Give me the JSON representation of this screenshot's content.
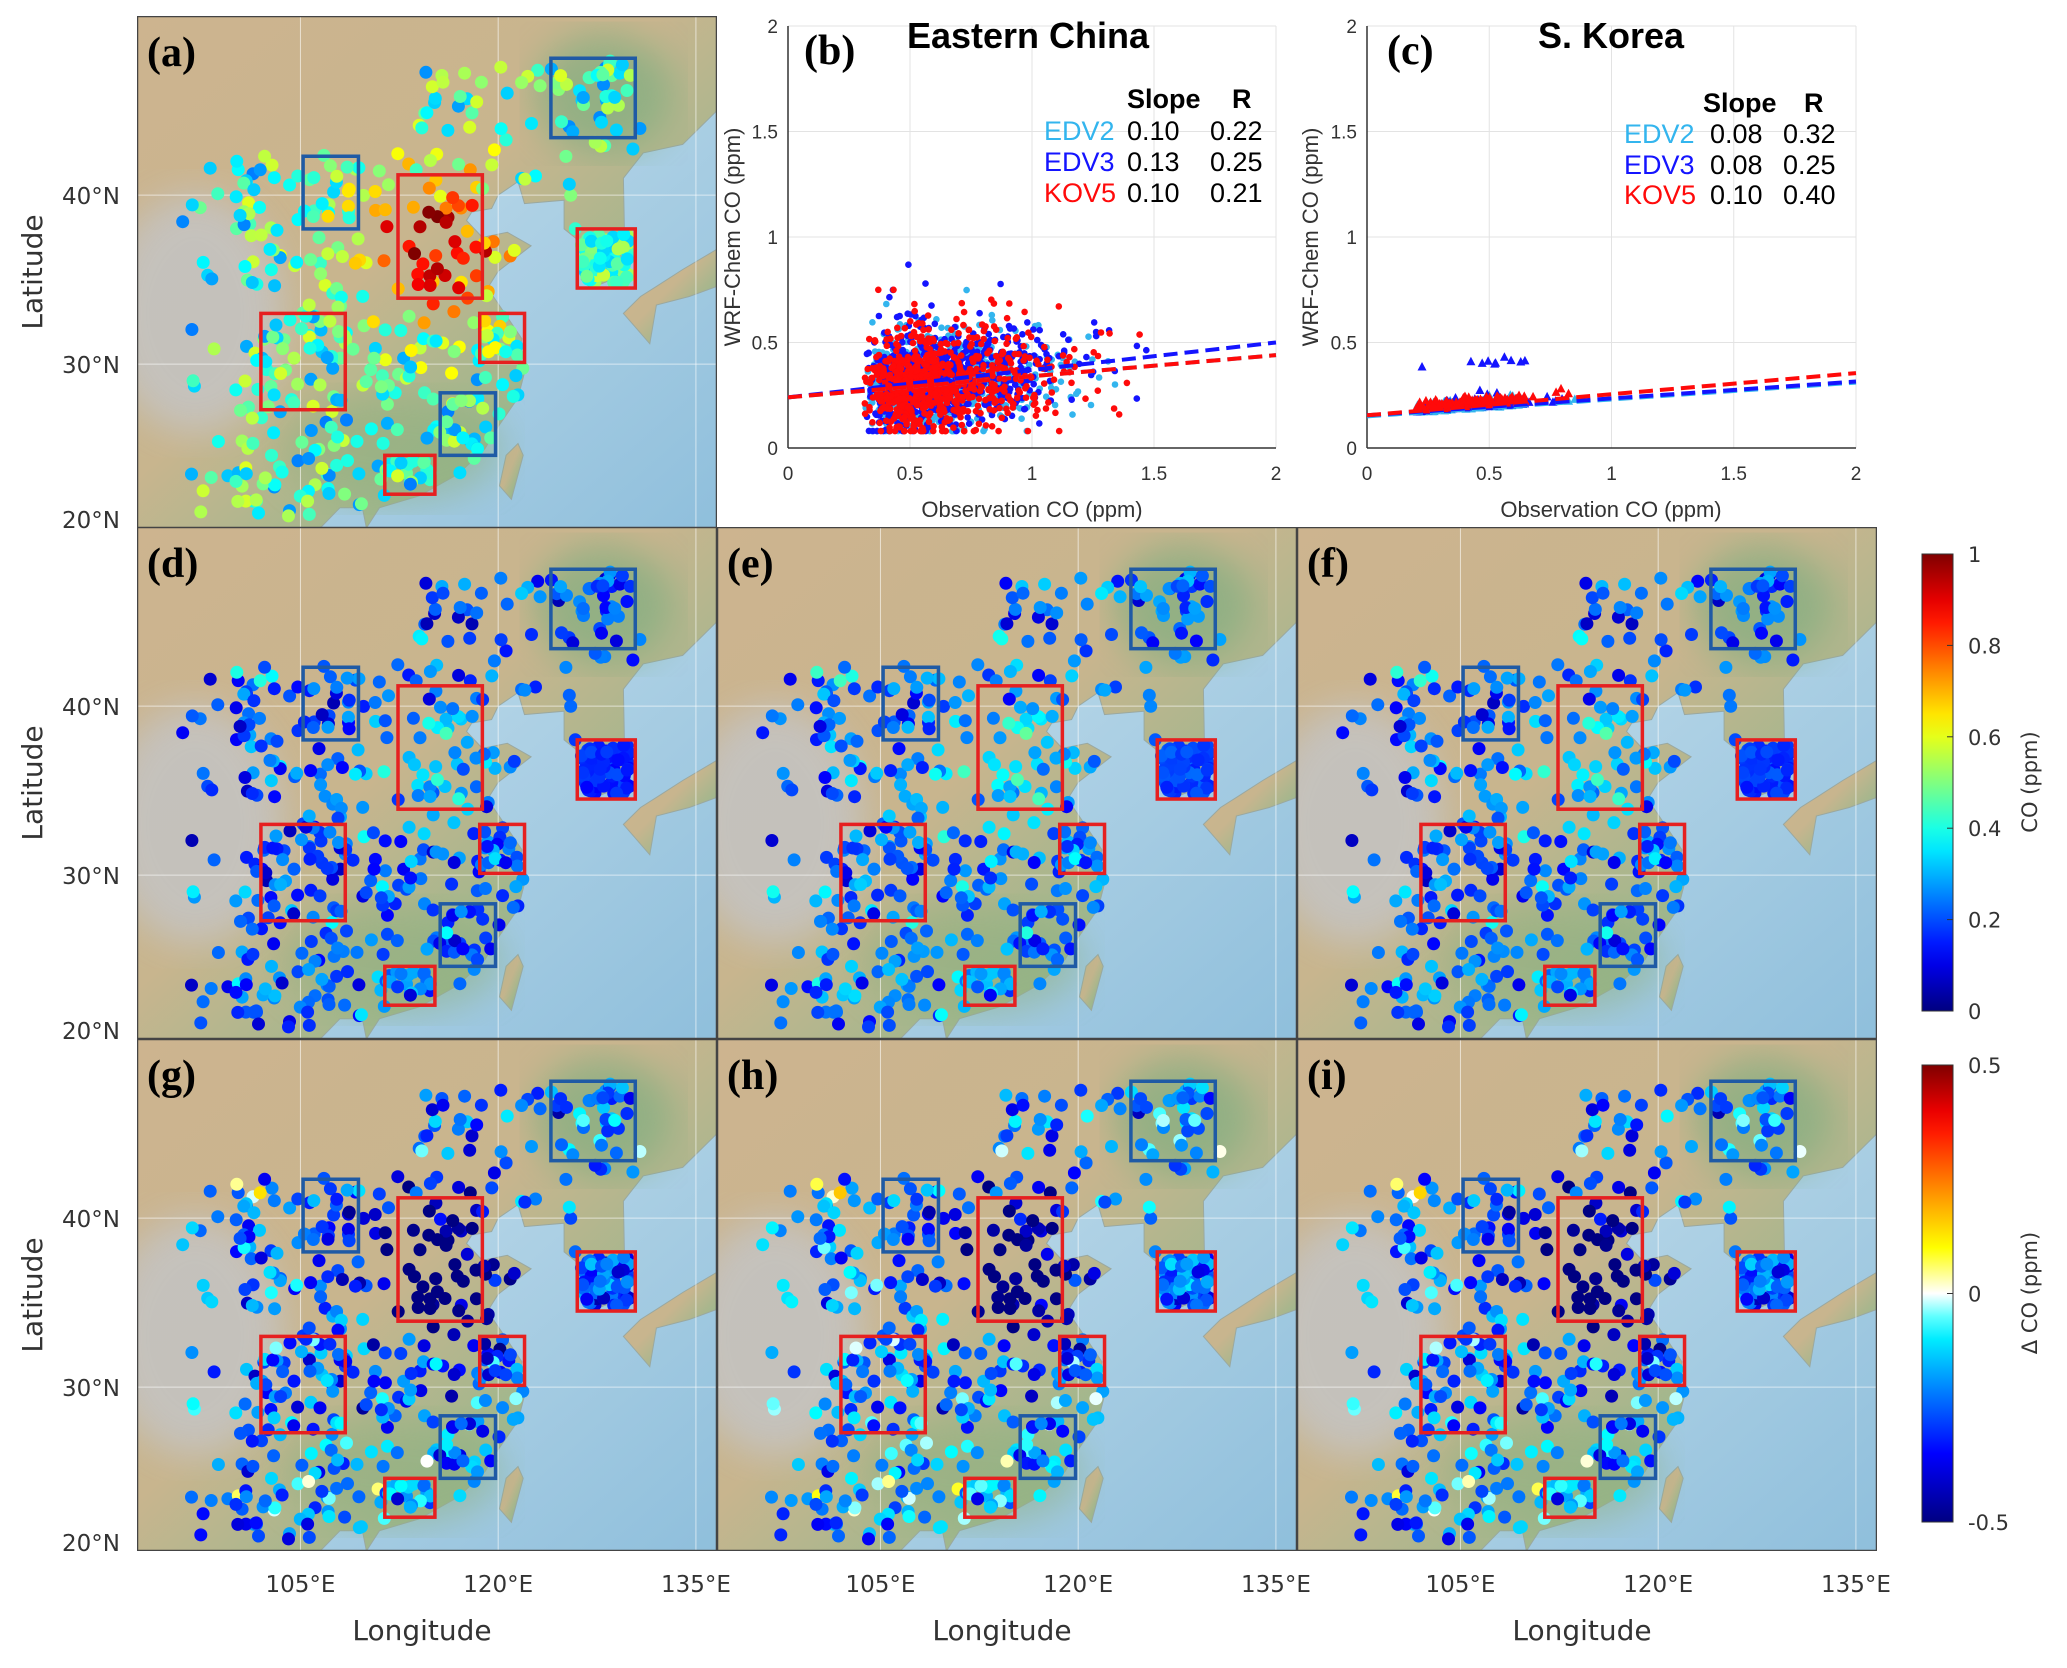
{
  "map_axes": {
    "lat_ticks": [
      "40°N",
      "30°N",
      "20°N"
    ],
    "lat_values": [
      40,
      30,
      20
    ],
    "lon_ticks": [
      "105°E",
      "120°E",
      "135°E"
    ],
    "lon_values": [
      105,
      120,
      135
    ],
    "ylabel": "Latitude",
    "xlabel": "Longitude",
    "lon_range": [
      92.6,
      136.6
    ],
    "lat_range": [
      20.3,
      50.6
    ]
  },
  "panels": {
    "a": "(a)",
    "b": "(b)",
    "c": "(c)",
    "d": "(d)",
    "e": "(e)",
    "f": "(f)",
    "g": "(g)",
    "h": "(h)",
    "i": "(i)"
  },
  "colors": {
    "red_box": "#e62020",
    "blue_box": "#1f5aa5",
    "EDV2": "#33b5ee",
    "EDV3": "#1414ff",
    "KOV5": "#ff0a0a"
  },
  "regions": {
    "red": [
      {
        "lon": [
          112.4,
          118.8
        ],
        "lat": [
          33.9,
          41.2
        ]
      },
      {
        "lon": [
          102.0,
          108.4
        ],
        "lat": [
          27.3,
          33.0
        ]
      },
      {
        "lon": [
          118.6,
          122.0
        ],
        "lat": [
          30.1,
          33.0
        ]
      },
      {
        "lon": [
          111.4,
          115.2
        ],
        "lat": [
          22.3,
          24.6
        ]
      },
      {
        "lon": [
          126.0,
          130.4
        ],
        "lat": [
          34.5,
          38.0
        ]
      }
    ],
    "blue": [
      {
        "lon": [
          124.0,
          130.4
        ],
        "lat": [
          43.4,
          48.1
        ]
      },
      {
        "lon": [
          105.2,
          109.4
        ],
        "lat": [
          38.0,
          42.3
        ]
      },
      {
        "lon": [
          115.6,
          119.8
        ],
        "lat": [
          24.6,
          28.3
        ]
      }
    ]
  },
  "colorbars": {
    "co": {
      "label": "CO (ppm)",
      "range": [
        0,
        1
      ],
      "ticks": [
        "1",
        "0.8",
        "0.6",
        "0.4",
        "0.2",
        "0"
      ],
      "tick_values": [
        1,
        0.8,
        0.6,
        0.4,
        0.2,
        0
      ]
    },
    "delta": {
      "label": "Δ CO (ppm)",
      "range": [
        -0.5,
        0.5
      ],
      "ticks": [
        "0.5",
        "0",
        "-0.5"
      ],
      "tick_values": [
        0.5,
        0,
        -0.5
      ]
    }
  },
  "chart_data": [
    {
      "type": "scatter",
      "panel": "b",
      "title": "Eastern China",
      "xlabel": "Observation CO (ppm)",
      "ylabel": "WRF-Chem CO (ppm)",
      "xlim": [
        0,
        2
      ],
      "ylim": [
        0,
        2
      ],
      "xticks": [
        "0",
        "0.5",
        "1",
        "1.5",
        "2"
      ],
      "yticks": [
        "0",
        "0.5",
        "1",
        "1.5",
        "2"
      ],
      "grid": true,
      "marker": "circle",
      "stats_header": {
        "slope": "Slope",
        "r": "R"
      },
      "series": [
        {
          "name": "EDV2",
          "slope": "0.10",
          "r": "0.22",
          "intercept": 0.24,
          "x_range": [
            0.15,
            1.85
          ],
          "y_range": [
            0.08,
            0.9
          ]
        },
        {
          "name": "EDV3",
          "slope": "0.13",
          "r": "0.25",
          "intercept": 0.24,
          "x_range": [
            0.15,
            1.85
          ],
          "y_range": [
            0.08,
            0.98
          ]
        },
        {
          "name": "KOV5",
          "slope": "0.10",
          "r": "0.21",
          "intercept": 0.24,
          "x_range": [
            0.15,
            1.85
          ],
          "y_range": [
            0.08,
            0.75
          ]
        }
      ]
    },
    {
      "type": "scatter",
      "panel": "c",
      "title": "S. Korea",
      "xlabel": "Observation CO (ppm)",
      "ylabel": "WRF-Chem CO (ppm)",
      "xlim": [
        0,
        2
      ],
      "ylim": [
        0,
        2
      ],
      "xticks": [
        "0",
        "0.5",
        "1",
        "1.5",
        "2"
      ],
      "yticks": [
        "0",
        "0.5",
        "1",
        "1.5",
        "2"
      ],
      "grid": true,
      "marker": "triangle",
      "stats_header": {
        "slope": "Slope",
        "r": "R"
      },
      "series": [
        {
          "name": "EDV2",
          "slope": "0.08",
          "r": "0.32",
          "intercept": 0.15,
          "x_range": [
            0.2,
            0.85
          ],
          "y_range": [
            0.14,
            0.25
          ]
        },
        {
          "name": "EDV3",
          "slope": "0.08",
          "r": "0.25",
          "intercept": 0.155,
          "x_range": [
            0.2,
            0.85
          ],
          "y_range": [
            0.14,
            0.43
          ]
        },
        {
          "name": "KOV5",
          "slope": "0.10",
          "r": "0.40",
          "intercept": 0.155,
          "x_range": [
            0.2,
            0.85
          ],
          "y_range": [
            0.14,
            0.28
          ]
        }
      ]
    }
  ]
}
